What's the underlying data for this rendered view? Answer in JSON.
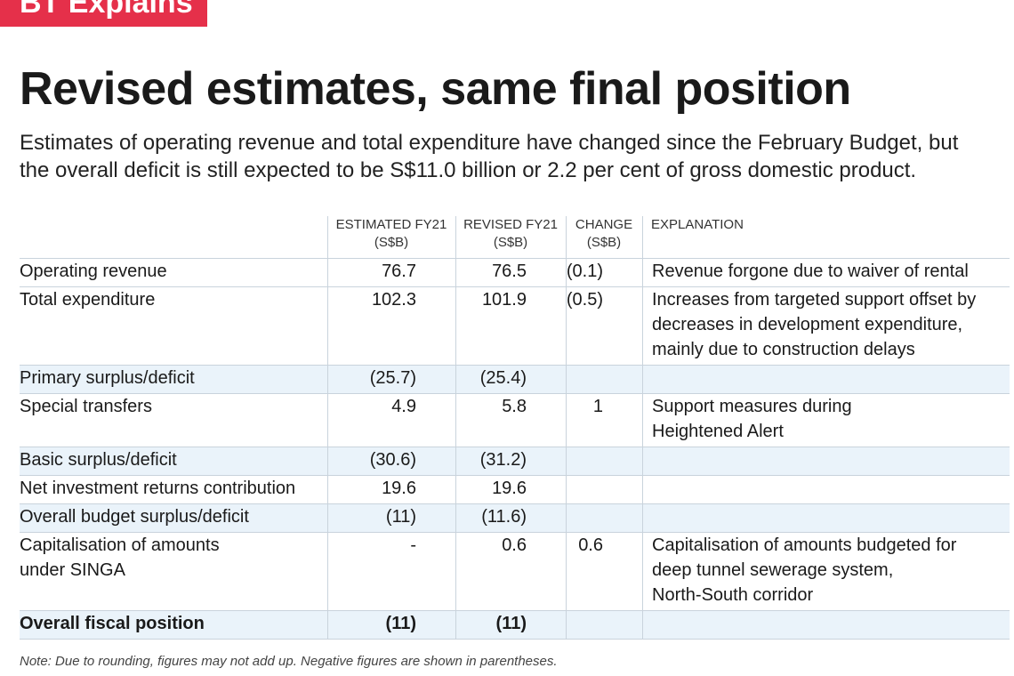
{
  "header": {
    "badge": "BT Explains",
    "title": "Revised estimates, same final position",
    "subtitle": [
      "Estimates of operating revenue and total expenditure have changed since the February Budget, but",
      "the overall deficit is still expected to be S$11.0 billion or 2.2 per cent of gross domestic product."
    ]
  },
  "table": {
    "columns": [
      [
        "ESTIMATED FY21",
        "(S$B)"
      ],
      [
        "REVISED FY21",
        "(S$B)"
      ],
      [
        "CHANGE",
        "(S$B)"
      ],
      [
        "EXPLANATION"
      ]
    ],
    "rows": [
      {
        "label": [
          "Operating revenue"
        ],
        "cells": [
          "76.7",
          "76.5",
          "(0.1)"
        ],
        "explanation": [
          "Revenue forgone due to waiver of rental"
        ]
      },
      {
        "label": [
          "Total expenditure"
        ],
        "cells": [
          "102.3",
          "101.9",
          "(0.5)"
        ],
        "explanation": [
          "Increases from targeted support offset by",
          "decreases in development expenditure,",
          "mainly due to construction delays"
        ]
      },
      {
        "label": [
          "Primary surplus/deficit"
        ],
        "cells": [
          "(25.7)",
          "(25.4)"
        ],
        "shaded": true
      },
      {
        "label": [
          "Special transfers"
        ],
        "cells": [
          "4.9",
          "5.8",
          "1"
        ],
        "explanation": [
          "Support measures during",
          "Heightened Alert"
        ]
      },
      {
        "label": [
          "Basic surplus/deficit"
        ],
        "cells": [
          "(30.6)",
          "(31.2)"
        ],
        "shaded": true
      },
      {
        "label": [
          "Net investment returns contribution"
        ],
        "cells": [
          "19.6",
          "19.6"
        ]
      },
      {
        "label": [
          "Overall budget surplus/deficit"
        ],
        "cells": [
          "(11)",
          "(11.6)"
        ],
        "shaded": true
      },
      {
        "label": [
          "Capitalisation of amounts",
          "under SINGA"
        ],
        "cells": [
          "-",
          "0.6",
          "0.6"
        ],
        "explanation": [
          "Capitalisation of amounts budgeted for",
          "deep tunnel sewerage system,",
          "North-South corridor"
        ]
      },
      {
        "label": [
          "Overall fiscal position"
        ],
        "cells": [
          "(11)",
          "(11)"
        ],
        "shaded": true,
        "bold": true
      }
    ],
    "note": "Note: Due to rounding, figures may not add up. Negative figures are shown in parentheses."
  }
}
